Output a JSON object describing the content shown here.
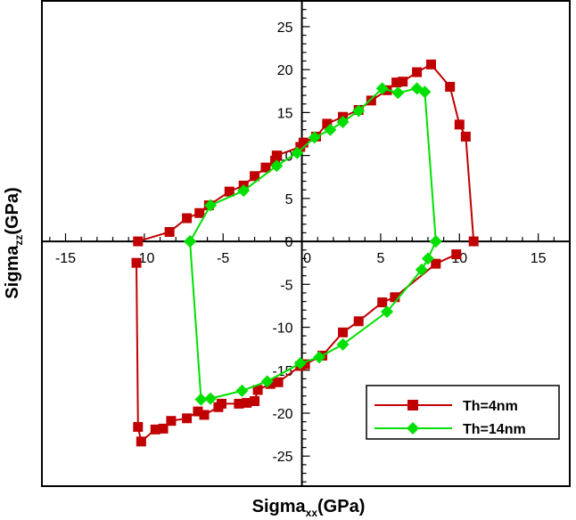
{
  "chart_data": {
    "type": "line",
    "title": "",
    "xlabel": {
      "main": "Sigma",
      "sub": "xx",
      "unit": "(GPa)"
    },
    "ylabel": {
      "main": "Sigma",
      "sub": "zz",
      "unit": "(GPa)"
    },
    "xlim": [
      -16.5,
      17
    ],
    "ylim": [
      -28.5,
      28
    ],
    "xticks": [
      -15,
      -10,
      -5,
      0,
      5,
      10,
      15
    ],
    "xtick_labels": [
      "-15",
      "-10",
      "-5",
      "0",
      "5",
      "10",
      "15"
    ],
    "yticks": [
      -25,
      -20,
      -15,
      -10,
      -5,
      0,
      5,
      10,
      15,
      20,
      25
    ],
    "ytick_labels": [
      "-25",
      "-20",
      "-15",
      "-10",
      "-5",
      "0",
      "5",
      "10",
      "15",
      "20",
      "25"
    ],
    "grid": false,
    "legend_position": "bottom-right",
    "series": [
      {
        "name": "Th=4nm",
        "color": "#c00000",
        "marker": "square",
        "points": [
          [
            -10.4,
            0.0
          ],
          [
            -8.4,
            1.1
          ],
          [
            -7.3,
            2.7
          ],
          [
            -6.5,
            3.3
          ],
          [
            -5.9,
            4.2
          ],
          [
            -4.6,
            5.8
          ],
          [
            -3.7,
            6.5
          ],
          [
            -3.0,
            7.6
          ],
          [
            -2.3,
            8.6
          ],
          [
            -1.7,
            9.4
          ],
          [
            -1.6,
            10.0
          ],
          [
            -0.1,
            11.0
          ],
          [
            0.1,
            11.5
          ],
          [
            0.9,
            12.2
          ],
          [
            1.6,
            13.7
          ],
          [
            2.6,
            14.5
          ],
          [
            3.6,
            15.3
          ],
          [
            4.4,
            16.4
          ],
          [
            5.4,
            17.6
          ],
          [
            6.0,
            18.5
          ],
          [
            6.4,
            18.6
          ],
          [
            7.3,
            19.7
          ],
          [
            8.2,
            20.6
          ],
          [
            9.4,
            18.0
          ],
          [
            10.0,
            13.6
          ],
          [
            10.4,
            12.2
          ],
          [
            10.9,
            0.0
          ]
        ],
        "points_bottom": [
          [
            -10.5,
            -2.5
          ],
          [
            -10.4,
            -21.6
          ],
          [
            -10.2,
            -23.3
          ],
          [
            -9.3,
            -21.9
          ],
          [
            -8.8,
            -21.8
          ],
          [
            -8.3,
            -20.9
          ],
          [
            -7.3,
            -20.6
          ],
          [
            -6.6,
            -19.8
          ],
          [
            -6.2,
            -20.2
          ],
          [
            -5.3,
            -19.3
          ],
          [
            -5.1,
            -18.9
          ],
          [
            -4.0,
            -18.9
          ],
          [
            -3.5,
            -18.8
          ],
          [
            -3.0,
            -18.6
          ],
          [
            -2.8,
            -17.3
          ],
          [
            -2.0,
            -16.6
          ],
          [
            -1.5,
            -16.4
          ],
          [
            -0.1,
            -14.5
          ],
          [
            0.2,
            -14.3
          ],
          [
            1.3,
            -13.3
          ],
          [
            2.6,
            -10.6
          ],
          [
            3.6,
            -9.3
          ],
          [
            5.1,
            -7.1
          ],
          [
            5.9,
            -6.5
          ],
          [
            8.5,
            -2.6
          ],
          [
            9.8,
            -1.5
          ]
        ]
      },
      {
        "name": "Th=14nm",
        "color": "#00e000",
        "marker": "diamond",
        "points": [
          [
            -7.1,
            0.0
          ],
          [
            -5.8,
            4.2
          ],
          [
            -3.7,
            5.9
          ],
          [
            -1.6,
            8.8
          ],
          [
            -0.3,
            10.3
          ],
          [
            0.8,
            12.1
          ],
          [
            1.8,
            13.0
          ],
          [
            2.6,
            13.9
          ],
          [
            3.6,
            15.2
          ],
          [
            5.1,
            17.8
          ],
          [
            6.1,
            17.3
          ],
          [
            7.3,
            17.8
          ],
          [
            7.8,
            17.4
          ],
          [
            8.5,
            0.0
          ]
        ],
        "points_bottom": [
          [
            8.5,
            0.0
          ],
          [
            8.0,
            -2.0
          ],
          [
            7.6,
            -3.3
          ],
          [
            5.4,
            -8.2
          ],
          [
            2.6,
            -12.0
          ],
          [
            1.1,
            -13.5
          ],
          [
            -0.1,
            -14.2
          ],
          [
            -2.2,
            -16.3
          ],
          [
            -3.8,
            -17.4
          ],
          [
            -5.8,
            -18.3
          ],
          [
            -6.4,
            -18.4
          ],
          [
            -7.1,
            0.0
          ]
        ]
      }
    ]
  }
}
